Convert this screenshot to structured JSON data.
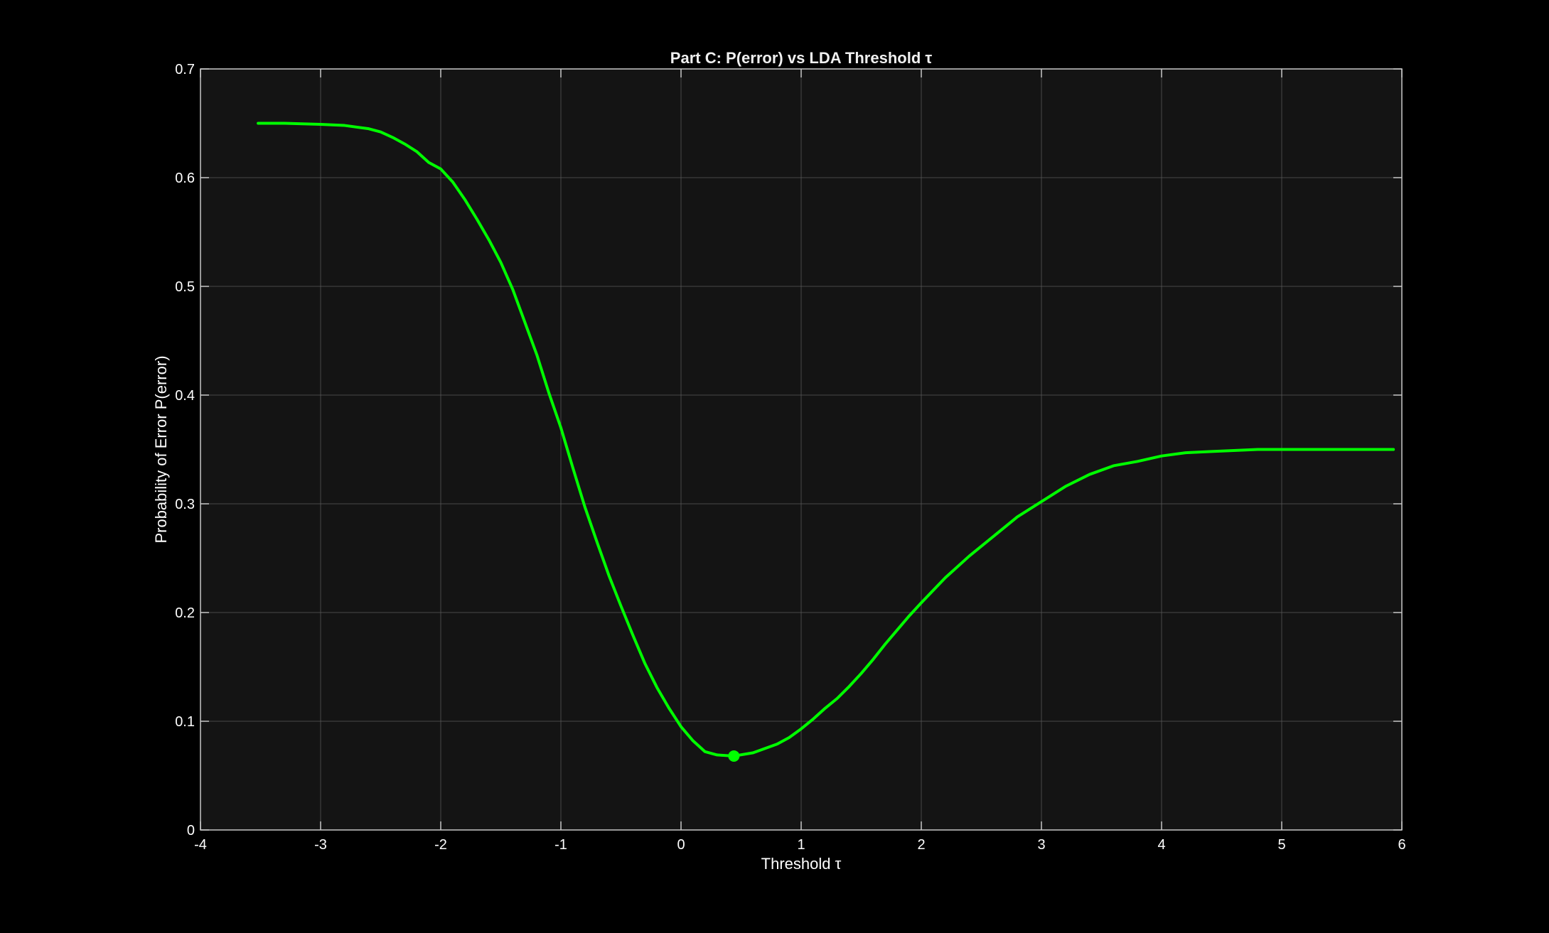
{
  "chart_data": {
    "type": "line",
    "title": "Part C: P(error) vs LDA Threshold τ",
    "xlabel": "Threshold τ",
    "ylabel": "Probability of Error P(error)",
    "xlim": [
      -4,
      6
    ],
    "ylim": [
      0,
      0.7
    ],
    "xticks": [
      -4,
      -3,
      -2,
      -1,
      0,
      1,
      2,
      3,
      4,
      5,
      6
    ],
    "yticks": [
      0,
      0.1,
      0.2,
      0.3,
      0.4,
      0.5,
      0.6,
      0.7
    ],
    "xtick_labels": [
      "-4",
      "-3",
      "-2",
      "-1",
      "0",
      "1",
      "2",
      "3",
      "4",
      "5",
      "6"
    ],
    "ytick_labels": [
      "0",
      "0.1",
      "0.2",
      "0.3",
      "0.4",
      "0.5",
      "0.6",
      "0.7"
    ],
    "grid": true,
    "colors": {
      "background": "#000000",
      "axes_background": "#141414",
      "grid": "#5a5a5a",
      "axis": "#c8c8c8",
      "text": "#ffffff",
      "line": "#00ff00"
    },
    "series": [
      {
        "x": [
          -3.52,
          -3.3,
          -3.0,
          -2.8,
          -2.6,
          -2.5,
          -2.4,
          -2.3,
          -2.2,
          -2.1,
          -2.0,
          -1.9,
          -1.8,
          -1.7,
          -1.6,
          -1.5,
          -1.4,
          -1.3,
          -1.2,
          -1.1,
          -1.0,
          -0.9,
          -0.8,
          -0.7,
          -0.6,
          -0.5,
          -0.4,
          -0.3,
          -0.2,
          -0.1,
          0.0,
          0.1,
          0.2,
          0.3,
          0.44,
          0.6,
          0.7,
          0.8,
          0.9,
          1.0,
          1.1,
          1.2,
          1.3,
          1.4,
          1.5,
          1.6,
          1.7,
          1.8,
          1.9,
          2.0,
          2.2,
          2.4,
          2.6,
          2.8,
          3.0,
          3.2,
          3.4,
          3.6,
          3.8,
          4.0,
          4.2,
          4.4,
          4.6,
          4.8,
          5.0,
          5.3,
          5.6,
          5.93
        ],
        "y": [
          0.65,
          0.65,
          0.649,
          0.648,
          0.645,
          0.642,
          0.637,
          0.631,
          0.624,
          0.614,
          0.608,
          0.596,
          0.58,
          0.562,
          0.543,
          0.522,
          0.497,
          0.467,
          0.437,
          0.402,
          0.37,
          0.333,
          0.297,
          0.265,
          0.234,
          0.206,
          0.179,
          0.153,
          0.131,
          0.112,
          0.095,
          0.082,
          0.072,
          0.069,
          0.068,
          0.071,
          0.075,
          0.079,
          0.085,
          0.093,
          0.102,
          0.112,
          0.121,
          0.132,
          0.144,
          0.157,
          0.171,
          0.184,
          0.197,
          0.209,
          0.232,
          0.252,
          0.27,
          0.288,
          0.302,
          0.316,
          0.327,
          0.335,
          0.339,
          0.344,
          0.347,
          0.348,
          0.349,
          0.35,
          0.35,
          0.35,
          0.35,
          0.35
        ]
      }
    ],
    "marker": {
      "x": 0.44,
      "y": 0.068
    }
  }
}
